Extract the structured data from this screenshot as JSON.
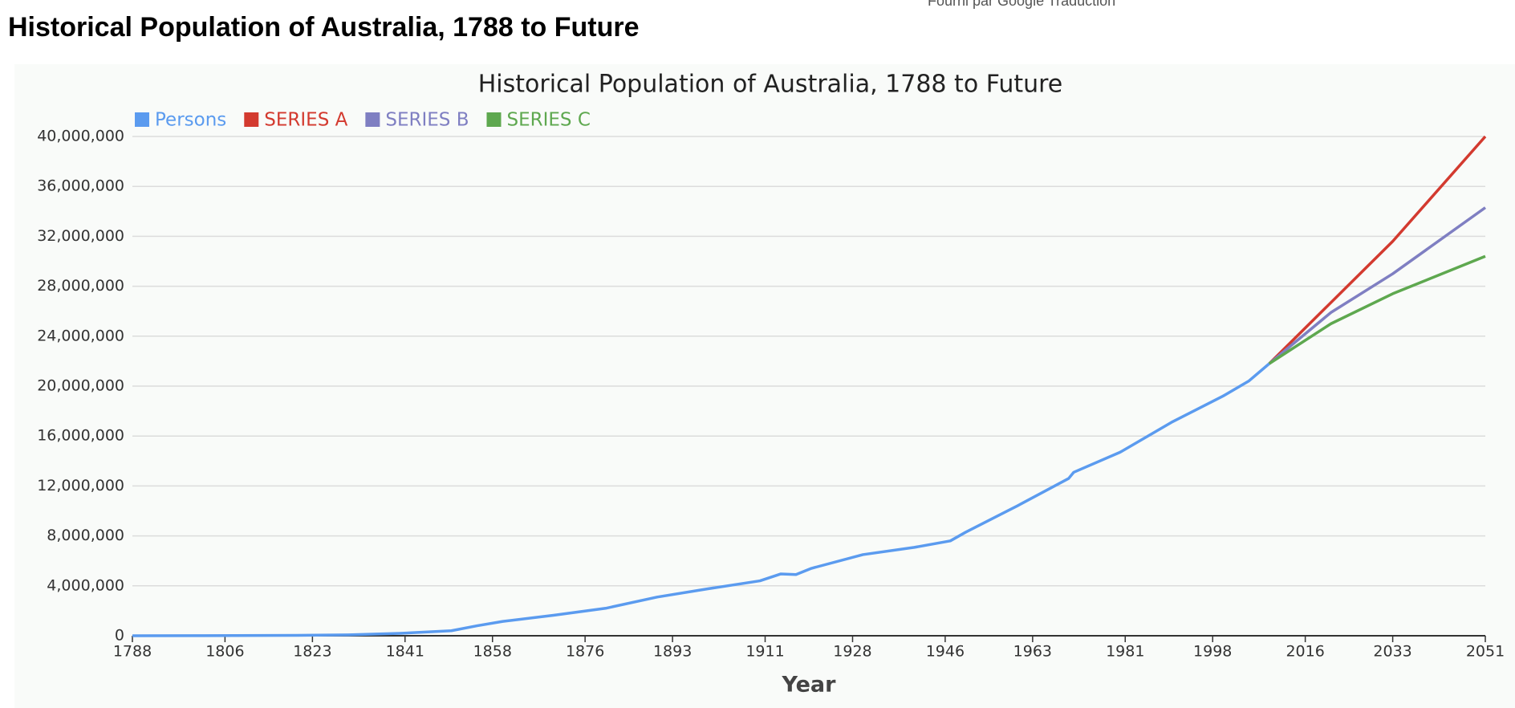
{
  "page_heading": "Historical Population of Australia, 1788 to Future",
  "translate_note": "Fourni par Google Traduction",
  "chart_data": {
    "type": "line",
    "title": "Historical Population of Australia, 1788 to Future",
    "x_label": "Year",
    "xlim": [
      1788,
      2051
    ],
    "xticks": [
      1788,
      1806,
      1823,
      1841,
      1858,
      1876,
      1893,
      1911,
      1928,
      1946,
      1963,
      1981,
      1998,
      2016,
      2033,
      2051
    ],
    "ylim": [
      0,
      40000000
    ],
    "yticks": [
      0,
      {
        "value": 4000000,
        "label": "4,000,000"
      },
      {
        "value": 8000000,
        "label": "8,000,000"
      },
      {
        "value": 12000000,
        "label": "12,000,000"
      },
      {
        "value": 16000000,
        "label": "16,000,000"
      },
      {
        "value": 20000000,
        "label": "20,000,000"
      },
      {
        "value": 24000000,
        "label": "24,000,000"
      },
      {
        "value": 28000000,
        "label": "28,000,000"
      },
      {
        "value": 32000000,
        "label": "32,000,000"
      },
      {
        "value": 36000000,
        "label": "36,000,000"
      },
      {
        "value": 40000000,
        "label": "40,000,000"
      }
    ],
    "grid": true,
    "legend": "top-left",
    "series": [
      {
        "name": "Persons",
        "color": "#5b9bef",
        "x": [
          1788,
          1800,
          1820,
          1830,
          1840,
          1850,
          1855,
          1860,
          1870,
          1880,
          1890,
          1900,
          1910,
          1914,
          1917,
          1920,
          1930,
          1940,
          1947,
          1950,
          1960,
          1970,
          1971,
          1980,
          1990,
          2000,
          2005,
          2009
        ],
        "values": [
          1000,
          5000,
          30000,
          70000,
          190000,
          400000,
          800000,
          1150000,
          1650000,
          2200000,
          3100000,
          3770000,
          4400000,
          4950000,
          4900000,
          5400000,
          6500000,
          7080000,
          7600000,
          8300000,
          10400000,
          12600000,
          13100000,
          14700000,
          17100000,
          19200000,
          20400000,
          21800000
        ]
      },
      {
        "name": "SERIES A",
        "color": "#d33a2f",
        "x": [
          2009,
          2033,
          2051
        ],
        "values": [
          21800000,
          31600000,
          40000000
        ]
      },
      {
        "name": "SERIES B",
        "color": "#7f7fc2",
        "x": [
          2009,
          2021,
          2033,
          2051
        ],
        "values": [
          21800000,
          25900000,
          29000000,
          34300000
        ]
      },
      {
        "name": "SERIES C",
        "color": "#5ea84f",
        "x": [
          2009,
          2021,
          2033,
          2051
        ],
        "values": [
          21800000,
          25000000,
          27400000,
          30400000
        ]
      }
    ]
  }
}
